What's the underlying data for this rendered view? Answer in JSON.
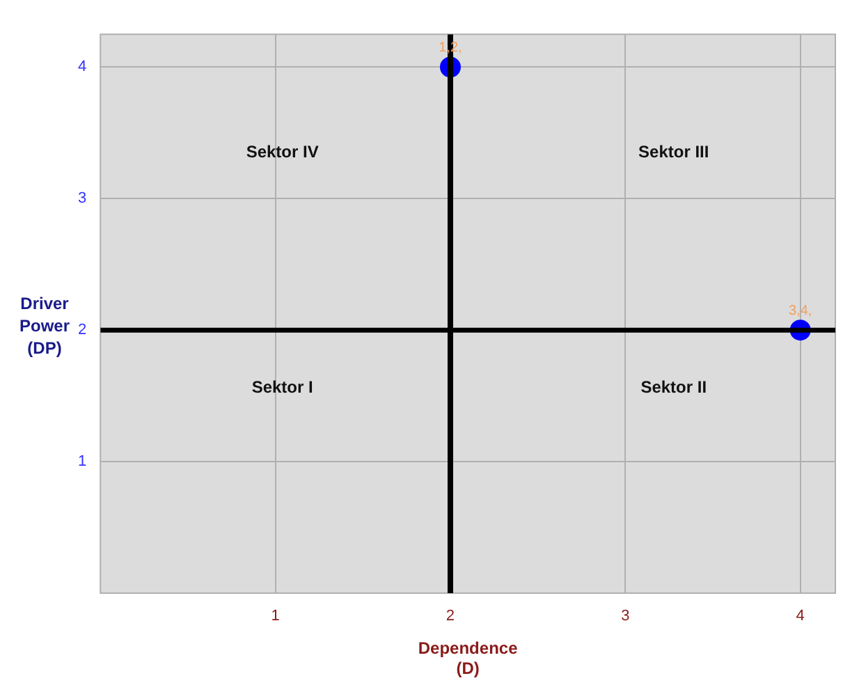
{
  "chart_data": {
    "type": "scatter",
    "xlabel": "Dependence\n(D)",
    "ylabel": "Driver\nPower\n(DP)",
    "x": [
      2,
      4
    ],
    "series": [
      {
        "type": "scatter",
        "color": "#0000ff",
        "values": [
          4,
          2
        ]
      }
    ],
    "xlim": [
      0,
      4.2
    ],
    "ylim": [
      0,
      4.25
    ],
    "xticks": [
      1,
      2,
      3,
      4
    ],
    "yticks": [
      1,
      2,
      3,
      4
    ],
    "grid": true,
    "marker": "circle",
    "ref_lines": [
      {
        "axis": "x",
        "value": 2,
        "color": "#000000"
      },
      {
        "axis": "y",
        "value": 2,
        "color": "#000000"
      }
    ],
    "annotations": [
      "Sektor IV",
      "Sektor III",
      "Sektor I",
      "Sektor II",
      {
        "text": "1,2,",
        "x": 2,
        "y": 4
      },
      {
        "text": "3,4,",
        "x": 4,
        "y": 2
      }
    ]
  }
}
